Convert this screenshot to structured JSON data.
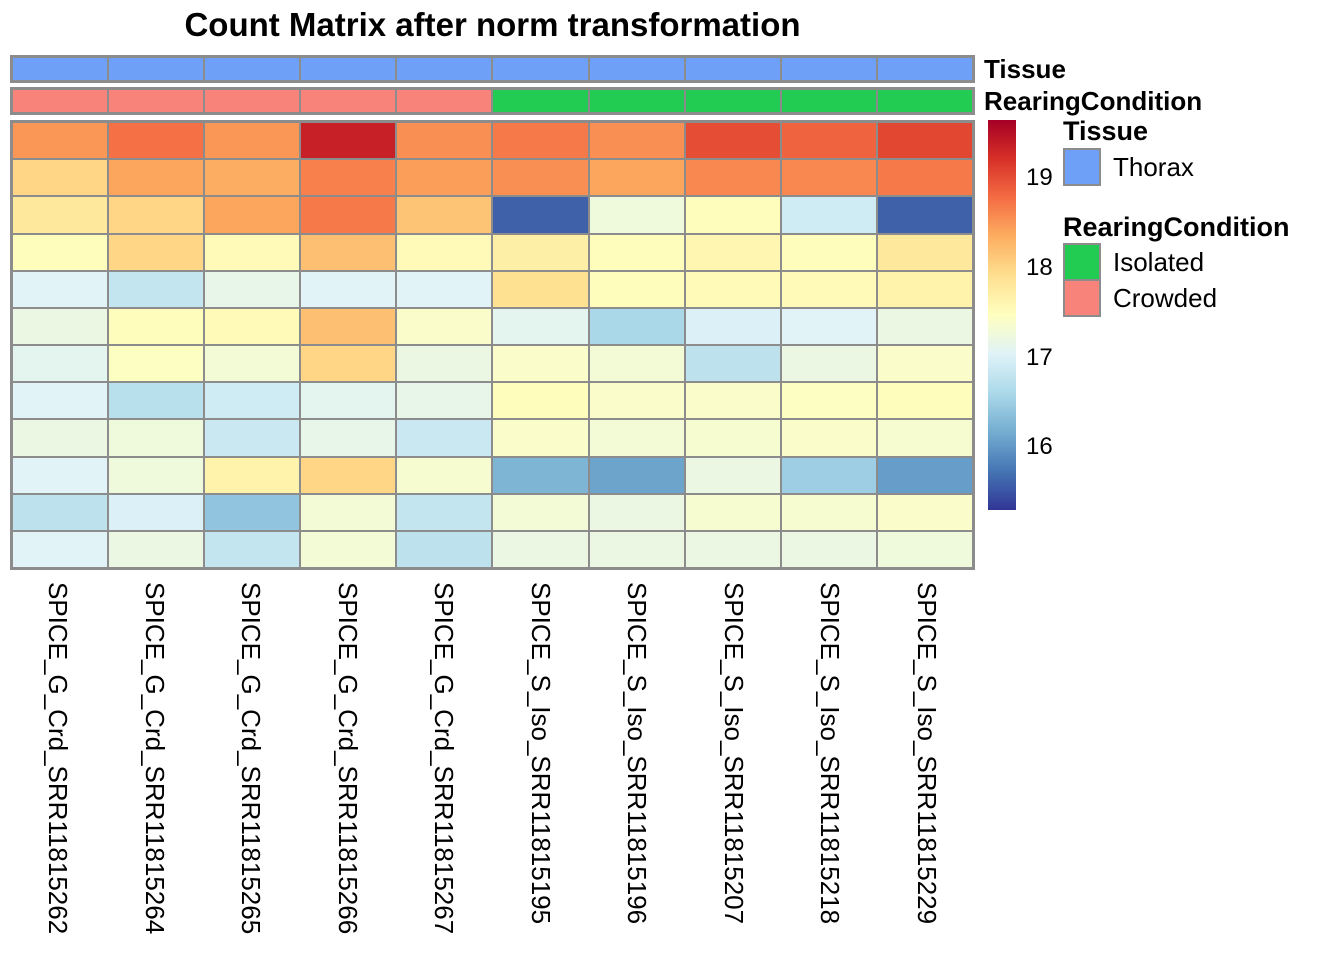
{
  "title": "Count Matrix after norm transformation",
  "annotation_rows": [
    {
      "id": "tissue",
      "label": "Tissue",
      "values": [
        "Thorax",
        "Thorax",
        "Thorax",
        "Thorax",
        "Thorax",
        "Thorax",
        "Thorax",
        "Thorax",
        "Thorax",
        "Thorax"
      ]
    },
    {
      "id": "rearing",
      "label": "RearingCondition",
      "values": [
        "Crowded",
        "Crowded",
        "Crowded",
        "Crowded",
        "Crowded",
        "Isolated",
        "Isolated",
        "Isolated",
        "Isolated",
        "Isolated"
      ]
    }
  ],
  "annotation_colors": {
    "Thorax": "#6FA0F8",
    "Isolated": "#22CB52",
    "Crowded": "#F8837A"
  },
  "legend": {
    "tissue": {
      "title": "Tissue",
      "items": [
        {
          "label": "Thorax",
          "color": "#6FA0F8"
        }
      ]
    },
    "rearing": {
      "title": "RearingCondition",
      "items": [
        {
          "label": "Isolated",
          "color": "#22CB52"
        },
        {
          "label": "Crowded",
          "color": "#F8837A"
        }
      ]
    }
  },
  "colorbar": {
    "vmin": 15.3,
    "vmax": 19.65,
    "tick_values": [
      19,
      18,
      17,
      16
    ],
    "tick_labels": [
      "19",
      "18",
      "17",
      "16"
    ],
    "palette_low_to_high": [
      "#313695",
      "#4575B4",
      "#74ADD1",
      "#ABD9E9",
      "#E0F3F8",
      "#FFFFBF",
      "#FEE090",
      "#FDAE61",
      "#F46D43",
      "#D73027",
      "#A50026"
    ]
  },
  "chart_data": {
    "type": "heatmap",
    "title": "Count Matrix after norm transformation",
    "colormap": "RdYlBu reversed (blue=low, red=high)",
    "value_range": [
      15.3,
      19.65
    ],
    "legend_position": "right",
    "columns": [
      "SPICE_G_Crd_SRR11815262",
      "SPICE_G_Crd_SRR11815264",
      "SPICE_G_Crd_SRR11815265",
      "SPICE_G_Crd_SRR11815266",
      "SPICE_G_Crd_SRR11815267",
      "SPICE_S_Iso_SRR11815195",
      "SPICE_S_Iso_SRR11815196",
      "SPICE_S_Iso_SRR11815207",
      "SPICE_S_Iso_SRR11815218",
      "SPICE_S_Iso_SRR11815229"
    ],
    "column_tissue": [
      "Thorax",
      "Thorax",
      "Thorax",
      "Thorax",
      "Thorax",
      "Thorax",
      "Thorax",
      "Thorax",
      "Thorax",
      "Thorax"
    ],
    "column_rearing_condition": [
      "Crowded",
      "Crowded",
      "Crowded",
      "Crowded",
      "Crowded",
      "Isolated",
      "Isolated",
      "Isolated",
      "Isolated",
      "Isolated"
    ],
    "values": [
      [
        18.5,
        18.75,
        18.5,
        19.35,
        18.55,
        18.7,
        18.55,
        19.0,
        18.85,
        19.05
      ],
      [
        18.0,
        18.4,
        18.35,
        18.65,
        18.45,
        18.55,
        18.4,
        18.6,
        18.6,
        18.7
      ],
      [
        17.8,
        18.0,
        18.4,
        18.7,
        18.15,
        15.6,
        17.25,
        17.5,
        16.9,
        15.6
      ],
      [
        17.5,
        18.0,
        17.55,
        18.2,
        17.55,
        17.7,
        17.5,
        17.6,
        17.5,
        17.8
      ],
      [
        17.05,
        16.8,
        17.15,
        17.05,
        17.05,
        17.9,
        17.5,
        17.55,
        17.55,
        17.65
      ],
      [
        17.2,
        17.5,
        17.55,
        18.2,
        17.4,
        17.1,
        16.6,
        17.0,
        17.05,
        17.2
      ],
      [
        17.1,
        17.45,
        17.3,
        18.0,
        17.2,
        17.4,
        17.3,
        16.75,
        17.2,
        17.4
      ],
      [
        17.05,
        16.7,
        16.9,
        17.1,
        17.15,
        17.5,
        17.4,
        17.4,
        17.45,
        17.5
      ],
      [
        17.2,
        17.25,
        16.85,
        17.15,
        16.85,
        17.4,
        17.3,
        17.35,
        17.4,
        17.35
      ],
      [
        17.05,
        17.25,
        17.65,
        18.0,
        17.35,
        16.25,
        16.1,
        17.2,
        16.5,
        16.05
      ],
      [
        16.75,
        17.0,
        16.4,
        17.3,
        16.8,
        17.3,
        17.2,
        17.35,
        17.35,
        17.4
      ],
      [
        17.05,
        17.2,
        16.8,
        17.3,
        16.75,
        17.2,
        17.2,
        17.2,
        17.2,
        17.25
      ]
    ]
  }
}
